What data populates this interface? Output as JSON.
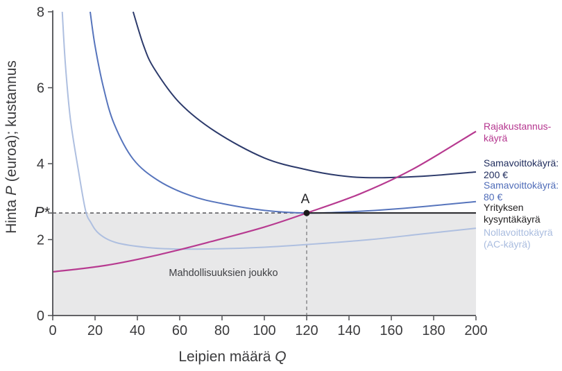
{
  "axes": {
    "y_title": {
      "pre": "Hinta ",
      "var": "P",
      "post": " (euroa); kustannus"
    },
    "x_title": {
      "pre": "Leipien määrä ",
      "var": "Q"
    }
  },
  "annotations": {
    "point_label": "A",
    "feasible_set": "Mahdollisuuksien joukko",
    "p_star_var": "P",
    "p_star_sup": "*"
  },
  "legend": {
    "items": [
      {
        "id": "mc",
        "line1": "Rajakustannus-",
        "line2": "käyrä",
        "color": "#b5368f"
      },
      {
        "id": "iso200",
        "line1": "Samavoittokäyrä:",
        "line2": "200 €",
        "color": "#1e2b5c"
      },
      {
        "id": "iso80",
        "line1": "Samavoittokäyrä:",
        "line2": "80 €",
        "color": "#4f6cb8"
      },
      {
        "id": "demand",
        "line1": "Yrityksen",
        "line2": "kysyntäkäyrä",
        "color": "#232122"
      },
      {
        "id": "ac",
        "line1": "Nollavoittokäyrä",
        "line2": "(AC-käyrä)",
        "color": "#a9bcdf"
      }
    ]
  },
  "chart_data": {
    "type": "line",
    "title": "",
    "x_label": "Leipien määrä Q",
    "y_label": "Hinta P (euroa); kustannus",
    "x_range": [
      0,
      200
    ],
    "y_range": [
      0,
      8
    ],
    "x_ticks": [
      0,
      20,
      40,
      60,
      80,
      100,
      120,
      140,
      160,
      180,
      200
    ],
    "y_ticks": [
      0,
      2,
      4,
      6,
      8
    ],
    "p_star": 2.7,
    "q_star": 120,
    "axis_color": "#4c4d50",
    "tick_color": "#3a3a3c",
    "point_A": {
      "q": 120,
      "p": 2.7,
      "color": "#1a1a1a",
      "label": "A"
    },
    "feasible_set": {
      "x": [
        0,
        200
      ],
      "y_top": 2.7,
      "fill": "#e8e8e9",
      "label": "Mahdollisuuksien joukko"
    },
    "series": [
      {
        "id": "ac",
        "name": "Nollavoittokäyrä (AC-käyrä)",
        "color": "#aebfe0",
        "width": 2,
        "points": [
          [
            4.5,
            8
          ],
          [
            6,
            6.6
          ],
          [
            8.4,
            5.15
          ],
          [
            12.2,
            3.8
          ],
          [
            15.5,
            2.77
          ],
          [
            18,
            2.45
          ],
          [
            22,
            2.15
          ],
          [
            30,
            1.92
          ],
          [
            45,
            1.79
          ],
          [
            60,
            1.75
          ],
          [
            80,
            1.76
          ],
          [
            100,
            1.8
          ],
          [
            120,
            1.87
          ],
          [
            150,
            2.0
          ],
          [
            175,
            2.15
          ],
          [
            200,
            2.3
          ]
        ]
      },
      {
        "id": "iso200",
        "name": "Samavoittokäyrä: 200 €",
        "color": "#2c3a6b",
        "width": 2,
        "points": [
          [
            38,
            8
          ],
          [
            43,
            7.1
          ],
          [
            48,
            6.5
          ],
          [
            60,
            5.6
          ],
          [
            77,
            4.84
          ],
          [
            100,
            4.15
          ],
          [
            120,
            3.84
          ],
          [
            135,
            3.69
          ],
          [
            150,
            3.63
          ],
          [
            175,
            3.67
          ],
          [
            200,
            3.78
          ]
        ]
      },
      {
        "id": "iso80",
        "name": "Samavoittokäyrä: 80 €",
        "color": "#5674bc",
        "width": 2,
        "points": [
          [
            17.7,
            8
          ],
          [
            20,
            7.1
          ],
          [
            24,
            6.0
          ],
          [
            29,
            5.05
          ],
          [
            38,
            4.12
          ],
          [
            50,
            3.55
          ],
          [
            65,
            3.16
          ],
          [
            80,
            2.95
          ],
          [
            100,
            2.77
          ],
          [
            120,
            2.7
          ],
          [
            140,
            2.73
          ],
          [
            165,
            2.82
          ],
          [
            200,
            3.0
          ]
        ]
      },
      {
        "id": "demand",
        "name": "Yrityksen kysyntäkäyrä",
        "color": "#232326",
        "width": 2,
        "straight": true,
        "points": [
          [
            120,
            2.7
          ],
          [
            200,
            2.7
          ]
        ]
      },
      {
        "id": "mc",
        "name": "Rajakustannuskäyrä",
        "color": "#b73a90",
        "width": 2.2,
        "points": [
          [
            0,
            1.15
          ],
          [
            25,
            1.32
          ],
          [
            50,
            1.6
          ],
          [
            75,
            1.95
          ],
          [
            100,
            2.33
          ],
          [
            120,
            2.7
          ],
          [
            145,
            3.2
          ],
          [
            170,
            3.85
          ],
          [
            200,
            4.85
          ]
        ]
      }
    ],
    "dashed_lines": [
      {
        "id": "p-star-guide",
        "points": [
          [
            0,
            2.7
          ],
          [
            120,
            2.7
          ]
        ],
        "color": "#515156",
        "dash": "5 4"
      },
      {
        "id": "q-star-guide",
        "points": [
          [
            120,
            2.7
          ],
          [
            120,
            0
          ]
        ],
        "color": "#87878b",
        "dash": "5 4"
      }
    ]
  }
}
